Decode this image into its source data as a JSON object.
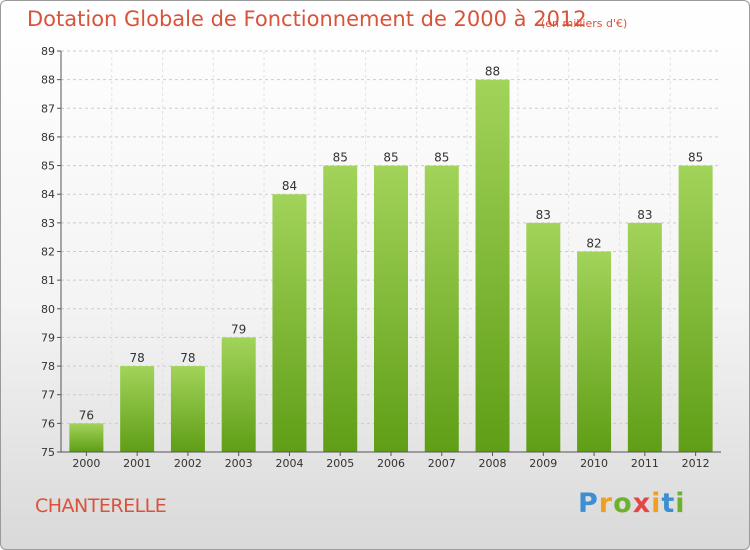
{
  "title": "Dotation Globale de Fonctionnement de 2000 à 2012",
  "unit_note": "(en milliers d'€)",
  "commune": "CHANTERELLE",
  "logo": {
    "p": "P",
    "r": "r",
    "o": "o",
    "x": "x",
    "i1": "i",
    "t": "t",
    "i2": "i"
  },
  "colors": {
    "title": "#d9533a",
    "bar_light": "#a2d35a",
    "bar_dark": "#5f9e16",
    "grid": "#cccccc",
    "axis": "#555555"
  },
  "chart_data": {
    "type": "bar",
    "categories": [
      "2000",
      "2001",
      "2002",
      "2003",
      "2004",
      "2005",
      "2006",
      "2007",
      "2008",
      "2009",
      "2010",
      "2011",
      "2012"
    ],
    "values": [
      76,
      78,
      78,
      79,
      84,
      85,
      85,
      85,
      88,
      83,
      82,
      83,
      85
    ],
    "title": "Dotation Globale de Fonctionnement de 2000 à 2012",
    "ylabel": "(en milliers d'€)",
    "ylim": [
      75,
      89
    ],
    "yticks": [
      75,
      76,
      77,
      78,
      79,
      80,
      81,
      82,
      83,
      84,
      85,
      86,
      87,
      88,
      89
    ],
    "grid": true,
    "data_labels": true
  }
}
